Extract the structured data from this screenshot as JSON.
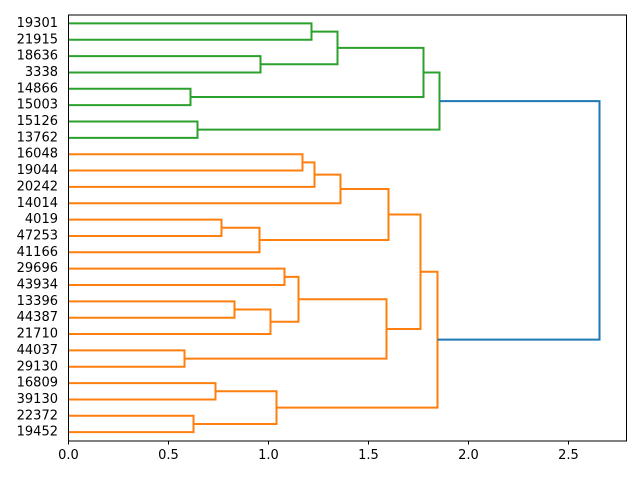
{
  "figure": {
    "background": "#ffffff",
    "title": ""
  },
  "chart_data": {
    "type": "dendrogram",
    "orientation": "horizontal-root-right",
    "title": "",
    "xlabel": "",
    "ylabel": "",
    "grid": false,
    "legend": null,
    "xlim": [
      0,
      2.79
    ],
    "xticks": [
      "0.0",
      "0.5",
      "1.0",
      "1.5",
      "2.0",
      "2.5"
    ],
    "xtick_values": [
      0,
      0.5,
      1.0,
      1.5,
      2.0,
      2.5
    ],
    "leaves": [
      "19301",
      "21915",
      "18636",
      "3338",
      "14866",
      "15003",
      "15126",
      "13762",
      "16048",
      "19044",
      "20242",
      "14014",
      "4019",
      "47253",
      "41166",
      "29696",
      "43934",
      "13396",
      "44387",
      "21710",
      "44037",
      "29130",
      "16809",
      "39130",
      "22372",
      "19452"
    ],
    "links": [
      {
        "id": "G1",
        "children": [
          "19301",
          "21915"
        ],
        "distance": 1.215,
        "color": "green"
      },
      {
        "id": "G2",
        "children": [
          "18636",
          "3338"
        ],
        "distance": 0.96,
        "color": "green"
      },
      {
        "id": "G3",
        "children": [
          "14866",
          "15003"
        ],
        "distance": 0.61,
        "color": "green"
      },
      {
        "id": "G4",
        "children": [
          "15126",
          "13762"
        ],
        "distance": 0.645,
        "color": "green"
      },
      {
        "id": "G5",
        "children": [
          "G1",
          "G2"
        ],
        "distance": 1.345,
        "color": "green"
      },
      {
        "id": "G6",
        "children": [
          "G5",
          "G3"
        ],
        "distance": 1.775,
        "color": "green"
      },
      {
        "id": "G7",
        "children": [
          "G6",
          "G4"
        ],
        "distance": 1.855,
        "color": "green"
      },
      {
        "id": "O1",
        "children": [
          "16048",
          "19044"
        ],
        "distance": 1.17,
        "color": "orange"
      },
      {
        "id": "O2",
        "children": [
          "O1",
          "20242"
        ],
        "distance": 1.23,
        "color": "orange"
      },
      {
        "id": "O3",
        "children": [
          "O2",
          "14014"
        ],
        "distance": 1.36,
        "color": "orange"
      },
      {
        "id": "O4",
        "children": [
          "4019",
          "47253"
        ],
        "distance": 0.765,
        "color": "orange"
      },
      {
        "id": "O5",
        "children": [
          "O4",
          "41166"
        ],
        "distance": 0.955,
        "color": "orange"
      },
      {
        "id": "O6",
        "children": [
          "O3",
          "O5"
        ],
        "distance": 1.6,
        "color": "orange"
      },
      {
        "id": "O7",
        "children": [
          "29696",
          "43934"
        ],
        "distance": 1.08,
        "color": "orange"
      },
      {
        "id": "O8",
        "children": [
          "13396",
          "44387"
        ],
        "distance": 0.83,
        "color": "orange"
      },
      {
        "id": "O9",
        "children": [
          "O8",
          "21710"
        ],
        "distance": 1.01,
        "color": "orange"
      },
      {
        "id": "O10",
        "children": [
          "O7",
          "O9"
        ],
        "distance": 1.15,
        "color": "orange"
      },
      {
        "id": "O11",
        "children": [
          "44037",
          "29130"
        ],
        "distance": 0.58,
        "color": "orange"
      },
      {
        "id": "O12",
        "children": [
          "16809",
          "39130"
        ],
        "distance": 0.735,
        "color": "orange"
      },
      {
        "id": "O13",
        "children": [
          "22372",
          "19452"
        ],
        "distance": 0.625,
        "color": "orange"
      },
      {
        "id": "O14",
        "children": [
          "O12",
          "O13"
        ],
        "distance": 1.04,
        "color": "orange"
      },
      {
        "id": "O15",
        "children": [
          "O10",
          "O11"
        ],
        "distance": 1.59,
        "color": "orange"
      },
      {
        "id": "O16",
        "children": [
          "O6",
          "O15"
        ],
        "distance": 1.76,
        "color": "orange"
      },
      {
        "id": "O17",
        "children": [
          "O16",
          "O14"
        ],
        "distance": 1.845,
        "color": "orange"
      },
      {
        "id": "ROOT",
        "children": [
          "G7",
          "O17"
        ],
        "distance": 2.655,
        "color": "blue"
      }
    ],
    "colors": {
      "green": "#2ca02c",
      "orange": "#ff7f0e",
      "blue": "#1f77b4",
      "axis": "#000000",
      "tick_label": "#000000"
    }
  }
}
